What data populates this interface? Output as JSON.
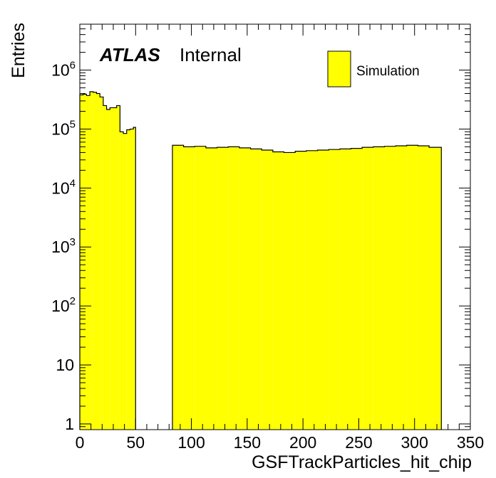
{
  "chart_data": {
    "type": "bar",
    "style": "histogram",
    "xlabel": "GSFTrackParticles_hit_chip",
    "ylabel": "Entries",
    "xlim": [
      0,
      350
    ],
    "ylim": [
      0.8,
      6000000
    ],
    "log_y": true,
    "grid": false,
    "x_ticks": [
      "0",
      "50",
      "100",
      "150",
      "200",
      "250",
      "300",
      "350"
    ],
    "y_ticks": [
      "1",
      "10",
      "10^2",
      "10^3",
      "10^4",
      "10^5",
      "10^6"
    ],
    "legend_position": "top-right",
    "colors": {
      "fill": "#ffff00",
      "line": "#000000"
    },
    "annotation": {
      "brand": "ATLAS",
      "status": "Internal"
    },
    "series": [
      {
        "name": "Simulation",
        "bins": [
          [
            0,
            3,
            380000
          ],
          [
            3,
            6,
            390000
          ],
          [
            6,
            9,
            370000
          ],
          [
            9,
            12,
            430000
          ],
          [
            12,
            15,
            420000
          ],
          [
            15,
            18,
            400000
          ],
          [
            18,
            21,
            350000
          ],
          [
            21,
            24,
            250000
          ],
          [
            24,
            27,
            215000
          ],
          [
            27,
            30,
            230000
          ],
          [
            30,
            33,
            230000
          ],
          [
            33,
            36,
            250000
          ],
          [
            36,
            39,
            90000
          ],
          [
            39,
            42,
            84000
          ],
          [
            42,
            45,
            97000
          ],
          [
            45,
            48,
            100000
          ],
          [
            48,
            50,
            107000
          ],
          [
            83,
            93,
            53000
          ],
          [
            93,
            103,
            50000
          ],
          [
            103,
            113,
            51000
          ],
          [
            113,
            123,
            48000
          ],
          [
            123,
            133,
            49000
          ],
          [
            133,
            143,
            50000
          ],
          [
            143,
            153,
            48000
          ],
          [
            153,
            163,
            46000
          ],
          [
            163,
            173,
            44000
          ],
          [
            173,
            183,
            41000
          ],
          [
            183,
            193,
            40000
          ],
          [
            193,
            203,
            42000
          ],
          [
            203,
            213,
            43000
          ],
          [
            213,
            223,
            44000
          ],
          [
            223,
            233,
            45000
          ],
          [
            233,
            243,
            46000
          ],
          [
            243,
            253,
            47000
          ],
          [
            253,
            263,
            49000
          ],
          [
            263,
            273,
            50000
          ],
          [
            273,
            283,
            51000
          ],
          [
            283,
            293,
            52000
          ],
          [
            293,
            303,
            53000
          ],
          [
            303,
            313,
            52000
          ],
          [
            313,
            324,
            49000
          ]
        ]
      }
    ]
  }
}
